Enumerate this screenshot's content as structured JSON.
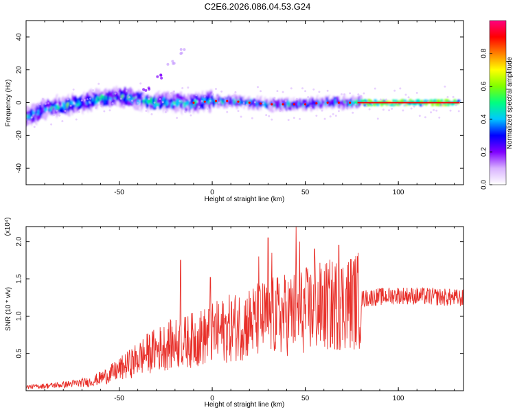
{
  "title": "C2E6.2026.086.04.53.G24",
  "colors": {
    "snr_line": "#e8302a",
    "colormap": [
      "#ffffff",
      "#d9b3ff",
      "#8000ff",
      "#0000ff",
      "#00c8ff",
      "#00ff80",
      "#80ff00",
      "#ffff00",
      "#ff8000",
      "#ff0000",
      "#ff0080"
    ]
  },
  "chart_data": [
    {
      "type": "heatmap",
      "xlabel": "Height of straight line (km)",
      "ylabel": "Frequency (Hz)",
      "xlim": [
        -100,
        135
      ],
      "ylim": [
        -50,
        50
      ],
      "xticks": [
        -50,
        0,
        50,
        100
      ],
      "yticks": [
        -40,
        -20,
        0,
        20,
        40
      ],
      "colorbar": {
        "label": "Normalized spectral amplitude",
        "range": [
          0,
          1
        ],
        "ticks": [
          "0.0",
          "0.2",
          "0.4",
          "0.6",
          "0.8"
        ]
      },
      "ridge": [
        {
          "x": -98,
          "freq": -8
        },
        {
          "x": -90,
          "freq": -4
        },
        {
          "x": -80,
          "freq": -2
        },
        {
          "x": -70,
          "freq": 0
        },
        {
          "x": -60,
          "freq": 2
        },
        {
          "x": -50,
          "freq": 4
        },
        {
          "x": -40,
          "freq": 2
        },
        {
          "x": -30,
          "freq": 0
        },
        {
          "x": -20,
          "freq": 0
        },
        {
          "x": -10,
          "freq": 0
        },
        {
          "x": 0,
          "freq": 1
        },
        {
          "x": 10,
          "freq": 1
        },
        {
          "x": 20,
          "freq": 0
        },
        {
          "x": 30,
          "freq": -1
        },
        {
          "x": 40,
          "freq": -1
        },
        {
          "x": 50,
          "freq": -1
        },
        {
          "x": 60,
          "freq": 0
        },
        {
          "x": 70,
          "freq": 0
        },
        {
          "x": 80,
          "freq": 0
        },
        {
          "x": 100,
          "freq": 0
        },
        {
          "x": 120,
          "freq": 0
        },
        {
          "x": 133,
          "freq": 0
        }
      ],
      "secondary_branch": [
        {
          "x": -35,
          "freq": 8
        },
        {
          "x": -28,
          "freq": 16
        },
        {
          "x": -22,
          "freq": 24
        },
        {
          "x": -15,
          "freq": 31
        }
      ]
    },
    {
      "type": "line",
      "xlabel": "Height of straight line (km)",
      "ylabel": "SNR (10 * v/v)",
      "scale_note": "(x10⁴)",
      "xlim": [
        -100,
        135
      ],
      "ylim": [
        0,
        2.2
      ],
      "xticks": [
        -50,
        0,
        50,
        100
      ],
      "yticks": [
        0.5,
        1.0,
        1.5,
        2.0
      ],
      "envelope": [
        {
          "x": -100,
          "y": 0.05
        },
        {
          "x": -80,
          "y": 0.08
        },
        {
          "x": -65,
          "y": 0.12
        },
        {
          "x": -55,
          "y": 0.22
        },
        {
          "x": -45,
          "y": 0.35
        },
        {
          "x": -35,
          "y": 0.5
        },
        {
          "x": -25,
          "y": 0.6
        },
        {
          "x": -15,
          "y": 0.65
        },
        {
          "x": -5,
          "y": 0.72
        },
        {
          "x": 5,
          "y": 0.8
        },
        {
          "x": 15,
          "y": 0.88
        },
        {
          "x": 25,
          "y": 0.95
        },
        {
          "x": 35,
          "y": 1.0
        },
        {
          "x": 45,
          "y": 1.05
        },
        {
          "x": 55,
          "y": 1.1
        },
        {
          "x": 65,
          "y": 1.15
        },
        {
          "x": 75,
          "y": 1.2
        },
        {
          "x": 85,
          "y": 1.25
        },
        {
          "x": 100,
          "y": 1.28
        },
        {
          "x": 120,
          "y": 1.26
        },
        {
          "x": 135,
          "y": 1.24
        }
      ],
      "peaks": [
        {
          "x": -17,
          "y": 1.75
        },
        {
          "x": -1,
          "y": 1.52
        },
        {
          "x": 25,
          "y": 1.8
        },
        {
          "x": 30,
          "y": 2.05
        },
        {
          "x": 32,
          "y": 1.85
        },
        {
          "x": 45,
          "y": 2.2
        },
        {
          "x": 47,
          "y": 2.0
        },
        {
          "x": 55,
          "y": 1.9
        },
        {
          "x": 68,
          "y": 1.95
        }
      ]
    }
  ]
}
